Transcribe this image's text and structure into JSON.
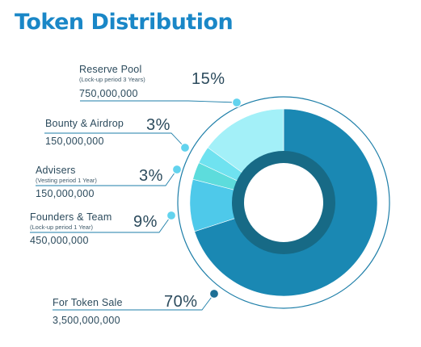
{
  "title": "Token Distribution",
  "chart_data": {
    "type": "pie",
    "title": "Token Distribution",
    "slices": [
      {
        "name": "For Token Sale",
        "percent_label": "70%",
        "value": 70,
        "amount": "3,500,000,000",
        "note": "",
        "color": "#1a88b3"
      },
      {
        "name": "Founders & Team",
        "percent_label": "9%",
        "value": 9,
        "amount": "450,000,000",
        "note": "(Lock-up period 1 Year)",
        "color": "#4ec9ea"
      },
      {
        "name": "Advisers",
        "percent_label": "3%",
        "value": 3,
        "amount": "150,000,000",
        "note": "(Vesting period 1 Year)",
        "color": "#5ddcdc"
      },
      {
        "name": "Bounty & Airdrop",
        "percent_label": "3%",
        "value": 3,
        "amount": "150,000,000",
        "note": "",
        "color": "#6fe2f0"
      },
      {
        "name": "Reserve Pool",
        "percent_label": "15%",
        "value": 15,
        "amount": "750,000,000",
        "note": "(Lock-up period 3 Years)",
        "color": "#a3f0f8"
      }
    ],
    "inner_ring_color": "#176a86",
    "leader_color": "#1d7ea8",
    "dot_colors": {
      "default": "#62d3ee",
      "token_sale": "#1c6f95"
    }
  }
}
